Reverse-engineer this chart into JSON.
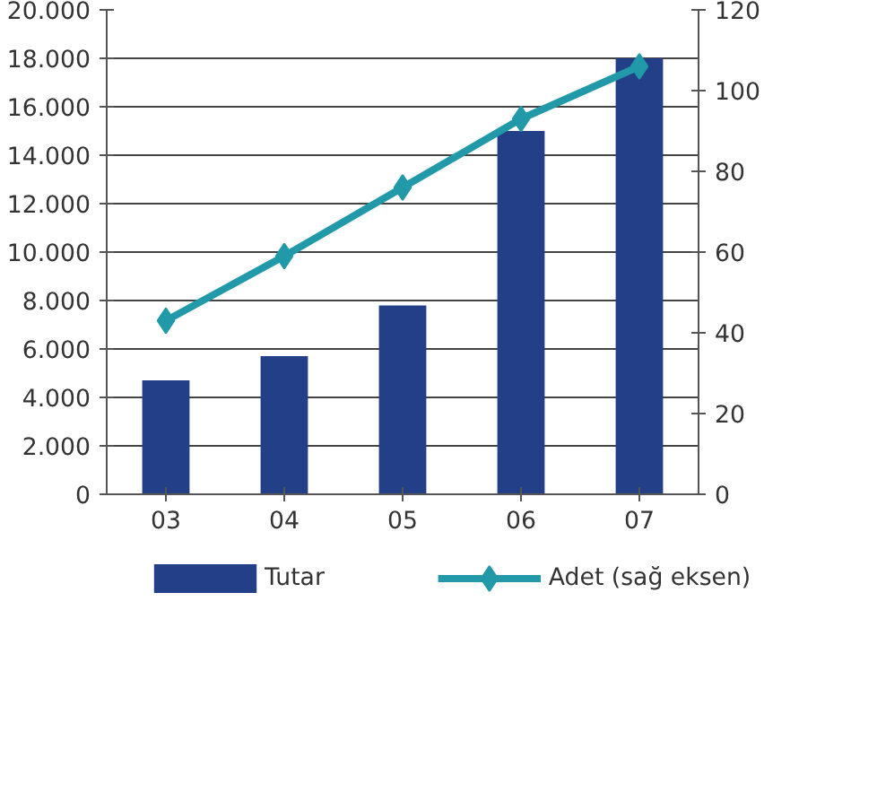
{
  "chart_data": {
    "type": "bar",
    "categories": [
      "03",
      "04",
      "05",
      "06",
      "07"
    ],
    "series": [
      {
        "name": "Tutar",
        "color": "#233f88",
        "values": [
          4700,
          5700,
          7800,
          15000,
          18000
        ]
      },
      {
        "name": "Adet (sağ eksen)",
        "type": "line",
        "axis": "y2",
        "color": "#2199a8",
        "marker": "diamond",
        "values": [
          43,
          59,
          76,
          93,
          106
        ]
      }
    ],
    "ylim": [
      0,
      20000
    ],
    "yticks": [
      {
        "value": 0,
        "label": "0"
      },
      {
        "value": 2000,
        "label": "2.000"
      },
      {
        "value": 4000,
        "label": "4.000"
      },
      {
        "value": 6000,
        "label": "6.000"
      },
      {
        "value": 8000,
        "label": "8.000"
      },
      {
        "value": 10000,
        "label": "10.000"
      },
      {
        "value": 12000,
        "label": "12.000"
      },
      {
        "value": 14000,
        "label": "14.000"
      },
      {
        "value": 16000,
        "label": "16.000"
      },
      {
        "value": 18000,
        "label": "18.000"
      },
      {
        "value": 20000,
        "label": "20.000"
      }
    ],
    "y2lim": [
      0,
      120
    ],
    "y2ticks": [
      0,
      20,
      40,
      60,
      80,
      100,
      120
    ],
    "grid": "y",
    "legend": "bottom"
  }
}
